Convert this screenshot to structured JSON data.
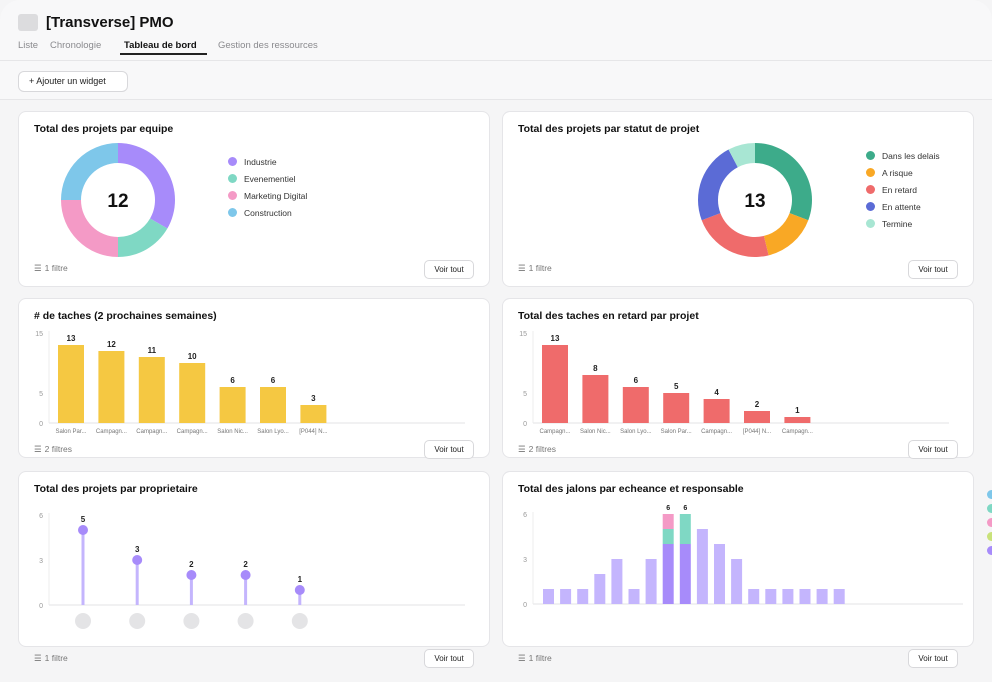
{
  "header": {
    "title": "[Transverse] PMO",
    "tabs": [
      {
        "label": "Liste"
      },
      {
        "label": "Chronologie"
      },
      {
        "label": "Tableau de bord"
      },
      {
        "label": "Gestion des ressources"
      }
    ]
  },
  "toolbar": {
    "add_widget_label": "+ Ajouter un widget"
  },
  "cards": {
    "team": {
      "title": "Total des projets par equipe",
      "center_value": "12",
      "filter": "1 filtre",
      "voir": "Voir tout"
    },
    "status": {
      "title": "Total des projets par statut de projet",
      "center_value": "13",
      "filter": "1 filtre",
      "voir": "Voir tout"
    },
    "tasks": {
      "title": "# de taches (2 prochaines semaines)",
      "filter": "2 filtres",
      "voir": "Voir tout"
    },
    "late": {
      "title": "Total des taches en retard par projet",
      "filter": "2 filtres",
      "voir": "Voir tout"
    },
    "owner": {
      "title": "Total des projets par proprietaire",
      "filter": "1 filtre",
      "voir": "Voir tout"
    },
    "milestones": {
      "title": "Total des jalons par echeance et responsable",
      "filter": "1 filtre",
      "voir": "Voir tout"
    }
  },
  "chart_data": [
    {
      "type": "pie",
      "labels": [
        "Industrie",
        "Evenementiel",
        "Marketing Digital",
        "Construction"
      ],
      "values": [
        4,
        2,
        3,
        3
      ],
      "colors": [
        "#a78bfa",
        "#7fd8c4",
        "#f49ac6",
        "#7ec7ea"
      ],
      "center_label": "12"
    },
    {
      "type": "pie",
      "labels": [
        "Dans les delais",
        "A risque",
        "En retard",
        "En attente",
        "Termine"
      ],
      "values": [
        4,
        2,
        3,
        3,
        1
      ],
      "colors": [
        "#3dab8a",
        "#f9a825",
        "#ef6b6b",
        "#5b6bd6",
        "#a8e6d3"
      ],
      "center_label": "13"
    },
    {
      "type": "bar",
      "categories": [
        "Salon Par...",
        "Campagn...",
        "Campagn...",
        "Campagn...",
        "Salon Nic...",
        "Salon Lyo...",
        "[P044] N..."
      ],
      "values": [
        13,
        12,
        11,
        10,
        6,
        6,
        3
      ],
      "yticks": [
        0,
        5,
        15
      ],
      "ylim": [
        0,
        15
      ],
      "color": "#f5c842"
    },
    {
      "type": "bar",
      "categories": [
        "Campagn...",
        "Salon Nic...",
        "Salon Lyo...",
        "Salon Par...",
        "Campagn...",
        "[P044] N...",
        "Campagn..."
      ],
      "values": [
        13,
        8,
        6,
        5,
        4,
        2,
        1
      ],
      "yticks": [
        0,
        5,
        15
      ],
      "ylim": [
        0,
        15
      ],
      "color": "#ef6b6b"
    },
    {
      "type": "scatter",
      "categories": [
        "",
        "",
        "",
        "",
        ""
      ],
      "values": [
        5,
        3,
        2,
        2,
        1
      ],
      "yticks": [
        0,
        3,
        6
      ],
      "ylim": [
        0,
        6
      ],
      "color": "#a78bfa"
    },
    {
      "type": "bar",
      "stacked": true,
      "yticks": [
        0,
        3,
        6
      ],
      "ylim": [
        0,
        6
      ],
      "totals": [
        1,
        1,
        1,
        2,
        3,
        1,
        3,
        6,
        6,
        5,
        4,
        3,
        1,
        1,
        1,
        1,
        1,
        1
      ],
      "series": [
        {
          "color": "#c4b5fd",
          "values": [
            1,
            1,
            1,
            2,
            3,
            1,
            3,
            0,
            0,
            5,
            4,
            3,
            1,
            1,
            1,
            1,
            1,
            1
          ]
        },
        {
          "color": "#a78bfa",
          "values": [
            0,
            0,
            0,
            0,
            0,
            0,
            0,
            4,
            4,
            0,
            0,
            0,
            0,
            0,
            0,
            0,
            0,
            0
          ]
        },
        {
          "color": "#7fd8c4",
          "values": [
            0,
            0,
            0,
            0,
            0,
            0,
            0,
            1,
            2,
            0,
            0,
            0,
            0,
            0,
            0,
            0,
            0,
            0
          ]
        },
        {
          "color": "#f49ac6",
          "values": [
            0,
            0,
            0,
            0,
            0,
            0,
            0,
            1,
            0,
            0,
            0,
            0,
            0,
            0,
            0,
            0,
            0,
            0
          ]
        }
      ],
      "value_labels_shown_for": [
        7,
        8
      ],
      "legend_colors": [
        "#7ec7ea",
        "#7fd8c4",
        "#f49ac6",
        "#c9e27a",
        "#a78bfa"
      ]
    }
  ]
}
